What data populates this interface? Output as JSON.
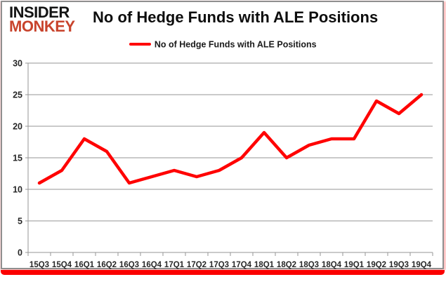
{
  "brand": {
    "line1": "INSIDER",
    "line2": "MONKEY"
  },
  "header": {
    "title": "No of Hedge Funds with ALE Positions"
  },
  "legend": {
    "label": "No of Hedge Funds with ALE Positions"
  },
  "colors": {
    "series_line": "#FF0000",
    "grid": "#969696",
    "axis": "#8f8f8f",
    "tick_text": "#262626",
    "brand_black": "#141414",
    "brand_red": "#C8432C",
    "bottom_bar": "#FB0000"
  },
  "chart_data": {
    "type": "line",
    "title": "No of Hedge Funds with ALE Positions",
    "categories": [
      "15Q3",
      "15Q4",
      "16Q1",
      "16Q2",
      "16Q3",
      "16Q4",
      "17Q1",
      "17Q2",
      "17Q3",
      "17Q4",
      "18Q1",
      "18Q2",
      "18Q3",
      "18Q4",
      "19Q1",
      "19Q2",
      "19Q3",
      "19Q4"
    ],
    "series": [
      {
        "name": "No of Hedge Funds with ALE Positions",
        "values": [
          11,
          13,
          18,
          16,
          11,
          12,
          13,
          12,
          13,
          15,
          19,
          15,
          17,
          18,
          18,
          24,
          22,
          25
        ]
      }
    ],
    "xlabel": "",
    "ylabel": "",
    "ylim": [
      0,
      30
    ],
    "ytick_interval": 5,
    "yticks": [
      0,
      5,
      10,
      15,
      20,
      25,
      30
    ],
    "grid": true,
    "legend_position": "top-center"
  }
}
